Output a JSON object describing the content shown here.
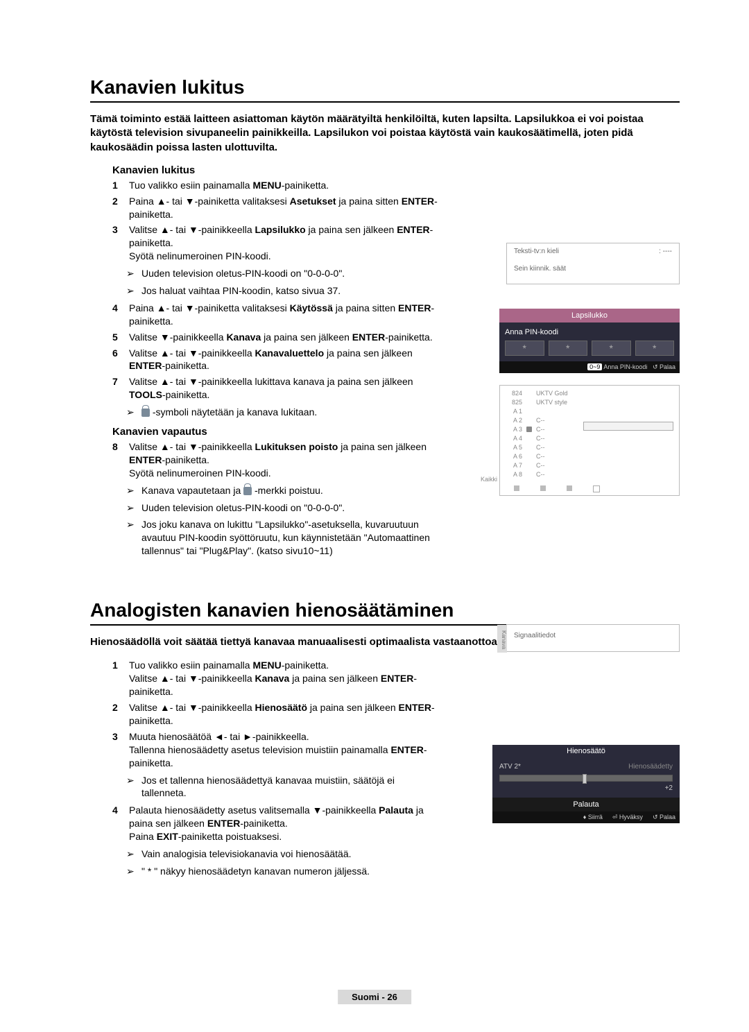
{
  "section1": {
    "title": "Kanavien lukitus",
    "intro": "Tämä toiminto estää laitteen asiattoman käytön määrätyiltä henkilöiltä, kuten lapsilta. Lapsilukkoa ei voi poistaa käytöstä television sivupaneelin painikkeilla. Lapsilukon voi poistaa käytöstä vain kaukosäätimellä, joten pidä kaukosäädin poissa lasten ulottuvilta.",
    "sub1": "Kanavien lukitus",
    "steps": {
      "s1_a": "Tuo valikko esiin painamalla ",
      "s1_b": "MENU",
      "s1_c": "-painiketta.",
      "s2_a": "Paina ▲- tai ▼-painiketta valitaksesi ",
      "s2_b": "Asetukset",
      "s2_c": " ja paina sitten ",
      "s2_d": "ENTER",
      "s2_e": "-painiketta.",
      "s3_a": "Valitse ▲- tai ▼-painikkeella ",
      "s3_b": "Lapsilukko",
      "s3_c": " ja paina sen jälkeen ",
      "s3_d": "ENTER",
      "s3_e": "-painiketta.",
      "s3_f": "Syötä nelinumeroinen PIN-koodi.",
      "n1": "Uuden television oletus-PIN-koodi on \"0-0-0-0\".",
      "n2": "Jos haluat vaihtaa PIN-koodin, katso sivua 37.",
      "s4_a": "Paina ▲- tai ▼-painiketta valitaksesi ",
      "s4_b": "Käytössä",
      "s4_c": " ja paina sitten ",
      "s4_d": "ENTER",
      "s4_e": "-painiketta.",
      "s5_a": "Valitse ▼-painikkeella ",
      "s5_b": "Kanava",
      "s5_c": " ja paina sen jälkeen ",
      "s5_d": "ENTER",
      "s5_e": "-painiketta.",
      "s6_a": "Valitse ▲- tai ▼-painikkeella ",
      "s6_b": "Kanavaluettelo",
      "s6_c": " ja paina sen jälkeen ",
      "s6_d": "ENTER",
      "s6_e": "-painiketta.",
      "s7_a": "Valitse ▲- tai ▼-painikkeella lukittava kanava ja paina sen jälkeen ",
      "s7_b": "TOOLS",
      "s7_c": "-painiketta.",
      "n3_a": " -symboli näytetään ja kanava lukitaan.",
      "sub2": "Kanavien vapautus",
      "s8_a": "Valitse ▲- tai ▼-painikkeella ",
      "s8_b": "Lukituksen poisto",
      "s8_c": " ja paina sen jälkeen ",
      "s8_d": "ENTER",
      "s8_e": "-painiketta.",
      "s8_f": "Syötä nelinumeroinen PIN-koodi.",
      "n4_a": "Kanava vapautetaan ja ",
      "n4_b": " -merkki poistuu.",
      "n5": "Uuden television oletus-PIN-koodi on \"0-0-0-0\".",
      "n6": "Jos joku kanava on lukittu \"Lapsilukko\"-asetuksella, kuvaruutuun avautuu PIN-koodin syöttöruutu, kun käynnistetään \"Automaattinen tallennus\" tai \"Plug&Play\". (katso sivu10~11)"
    }
  },
  "section2": {
    "title": "Analogisten kanavien hienosäätäminen",
    "intro": "Hienosäädöllä voit säätää tiettyä kanavaa manuaalisesti optimaalista vastaanottoa varten.",
    "steps": {
      "s1_a": "Tuo valikko esiin painamalla ",
      "s1_b": "MENU",
      "s1_c": "-painiketta.",
      "s1_d": "Valitse ▲- tai ▼-painikkeella ",
      "s1_e": "Kanava",
      "s1_f": " ja paina sen jälkeen ",
      "s1_g": "ENTER",
      "s1_h": "-painiketta.",
      "s2_a": "Valitse ▲- tai ▼-painikkeella ",
      "s2_b": "Hienosäätö",
      "s2_c": " ja paina sen jälkeen ",
      "s2_d": "ENTER",
      "s2_e": "-painiketta.",
      "s3_a": "Muuta hienosäätöä ◄- tai ►-painikkeella.",
      "s3_b": "Tallenna hienosäädetty asetus television muistiin painamalla ",
      "s3_c": "ENTER",
      "s3_d": "-painiketta.",
      "n1": "Jos et tallenna hienosäädettyä kanavaa muistiin, säätöjä ei tallenneta.",
      "s4_a": "Palauta hienosäädetty asetus valitsemalla ▼-painikkeella ",
      "s4_b": "Palauta",
      "s4_c": " ja paina sen jälkeen ",
      "s4_d": "ENTER",
      "s4_e": "-painiketta.",
      "s4_f": "Paina ",
      "s4_g": "EXIT",
      "s4_h": "-painiketta poistuaksesi.",
      "n2": "Vain analogisia televisiokanavia voi hienosäätää.",
      "n3": "\" * \" näkyy hienosäädetyn kanavan numeron jäljessä."
    }
  },
  "ui_setup": {
    "row1_l": "Teksti-tv:n kieli",
    "row1_r": ": ----",
    "row2_l": "Sein kiinnik. säät"
  },
  "ui_pin": {
    "title": "Lapsilukko",
    "label": "Anna PIN-koodi",
    "footer_a": "0~9",
    "footer_b": "Anna PIN-koodi",
    "footer_c": "↺ Palaa"
  },
  "ui_list": {
    "all": "Kaikki",
    "rows": [
      {
        "n": "824",
        "name": "UKTV Gold"
      },
      {
        "n": "825",
        "name": "UKTV style"
      },
      {
        "n": "A 1",
        "name": ""
      },
      {
        "n": "A 2",
        "name": "C--"
      },
      {
        "n": "A 3",
        "name": "C--",
        "lock": true
      },
      {
        "n": "A 4",
        "name": "C--"
      },
      {
        "n": "A 5",
        "name": "C--"
      },
      {
        "n": "A 6",
        "name": "C--"
      },
      {
        "n": "A 7",
        "name": "C--"
      },
      {
        "n": "A 8",
        "name": "C--"
      }
    ]
  },
  "ui_signal": {
    "vtab": "Kanava",
    "label": "Signaalitiedot"
  },
  "ui_finetune": {
    "title": "Hienosäätö",
    "ch": "ATV 2*",
    "status": "Hienosäädetty",
    "value": "+2",
    "reset": "Palauta",
    "footer_a": "♦ Siirrä",
    "footer_b": "⏎ Hyväksy",
    "footer_c": "↺ Palaa"
  },
  "footer": "Suomi - 26"
}
